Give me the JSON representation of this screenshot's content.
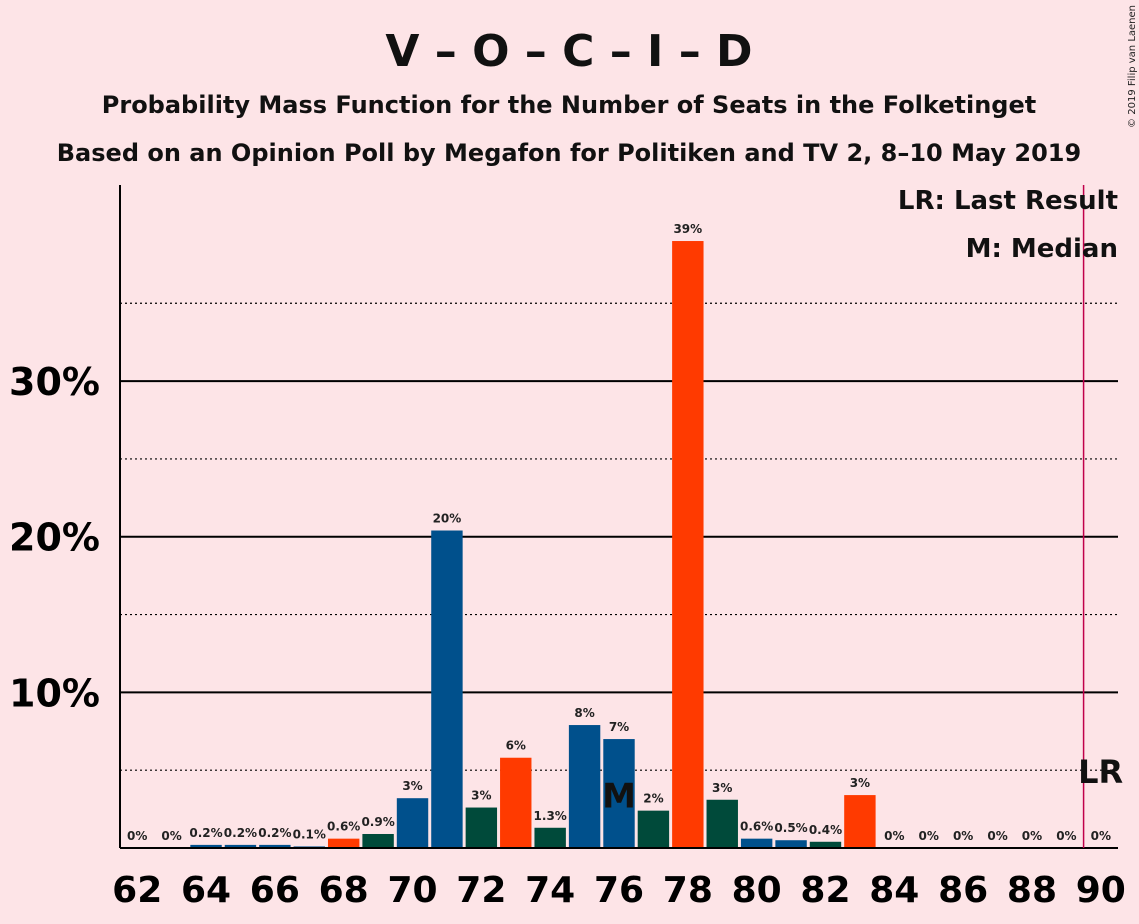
{
  "chart_data": {
    "type": "bar",
    "title": "V – O – C – I – D",
    "subtitle": "Probability Mass Function for the Number of Seats in the Folketinget",
    "subtitle2": "Based on an Opinion Poll by Megafon for Politiken and TV 2, 8–10 May 2019",
    "copyright": "© 2019 Filip van Laenen",
    "legend": {
      "lr": "LR: Last Result",
      "m": "M: Median"
    },
    "y_tick_labels": [
      "10%",
      "20%",
      "30%"
    ],
    "y_ticks": [
      10,
      20,
      30
    ],
    "y_dotted": [
      5,
      15,
      25,
      35
    ],
    "ylim": [
      0,
      42.6
    ],
    "xlim": [
      61.5,
      90.5
    ],
    "x_tick_labels": [
      "62",
      "64",
      "66",
      "68",
      "70",
      "72",
      "74",
      "76",
      "78",
      "80",
      "82",
      "84",
      "86",
      "88",
      "90"
    ],
    "x_ticks": [
      62,
      64,
      66,
      68,
      70,
      72,
      74,
      76,
      78,
      80,
      82,
      84,
      86,
      88,
      90
    ],
    "median_seat": 76,
    "median_label": "M",
    "last_result_seat": 89.5,
    "last_result_label": "LR",
    "colors": {
      "blue": "#00508c",
      "green": "#004a3a",
      "red": "#ff3a00",
      "lr_line": "#c0004a",
      "median_text": "#ffffff"
    },
    "bars": [
      {
        "seat": 62,
        "value": 0,
        "label": "0%",
        "color": "blue"
      },
      {
        "seat": 63,
        "value": 0,
        "label": "0%",
        "color": "blue"
      },
      {
        "seat": 64,
        "value": 0.2,
        "label": "0.2%",
        "color": "blue"
      },
      {
        "seat": 65,
        "value": 0.2,
        "label": "0.2%",
        "color": "blue"
      },
      {
        "seat": 66,
        "value": 0.2,
        "label": "0.2%",
        "color": "blue"
      },
      {
        "seat": 67,
        "value": 0.1,
        "label": "0.1%",
        "color": "blue"
      },
      {
        "seat": 68,
        "value": 0.6,
        "label": "0.6%",
        "color": "red"
      },
      {
        "seat": 69,
        "value": 0.9,
        "label": "0.9%",
        "color": "green"
      },
      {
        "seat": 70,
        "value": 3.2,
        "label": "3%",
        "color": "blue"
      },
      {
        "seat": 71,
        "value": 20.4,
        "label": "20%",
        "color": "blue"
      },
      {
        "seat": 72,
        "value": 2.6,
        "label": "3%",
        "color": "green"
      },
      {
        "seat": 73,
        "value": 5.8,
        "label": "6%",
        "color": "red"
      },
      {
        "seat": 74,
        "value": 1.3,
        "label": "1.3%",
        "color": "green"
      },
      {
        "seat": 75,
        "value": 7.9,
        "label": "8%",
        "color": "blue"
      },
      {
        "seat": 76,
        "value": 7.0,
        "label": "7%",
        "color": "blue"
      },
      {
        "seat": 77,
        "value": 2.4,
        "label": "2%",
        "color": "green"
      },
      {
        "seat": 78,
        "value": 39.0,
        "label": "39%",
        "color": "red"
      },
      {
        "seat": 79,
        "value": 3.1,
        "label": "3%",
        "color": "green"
      },
      {
        "seat": 80,
        "value": 0.6,
        "label": "0.6%",
        "color": "blue"
      },
      {
        "seat": 81,
        "value": 0.5,
        "label": "0.5%",
        "color": "blue"
      },
      {
        "seat": 82,
        "value": 0.4,
        "label": "0.4%",
        "color": "green"
      },
      {
        "seat": 83,
        "value": 3.4,
        "label": "3%",
        "color": "red"
      },
      {
        "seat": 84,
        "value": 0,
        "label": "0%",
        "color": "blue"
      },
      {
        "seat": 85,
        "value": 0,
        "label": "0%",
        "color": "blue"
      },
      {
        "seat": 86,
        "value": 0,
        "label": "0%",
        "color": "blue"
      },
      {
        "seat": 87,
        "value": 0,
        "label": "0%",
        "color": "blue"
      },
      {
        "seat": 88,
        "value": 0,
        "label": "0%",
        "color": "blue"
      },
      {
        "seat": 89,
        "value": 0,
        "label": "0%",
        "color": "blue"
      },
      {
        "seat": 90,
        "value": 0,
        "label": "0%",
        "color": "blue"
      }
    ]
  }
}
